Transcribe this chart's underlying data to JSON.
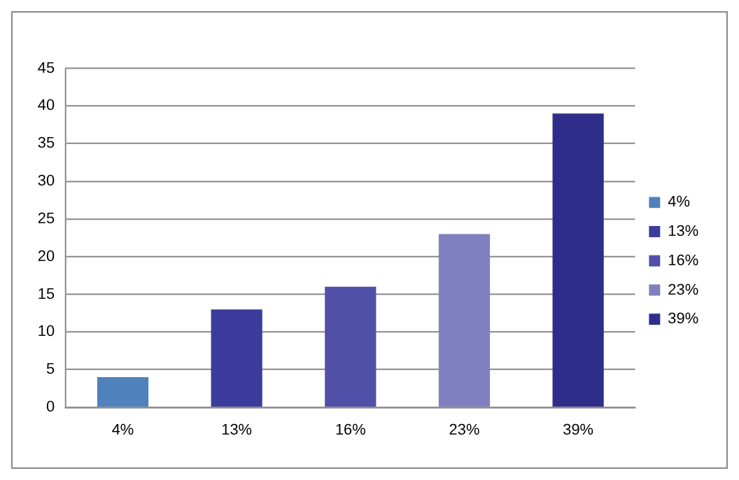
{
  "chart_data": {
    "type": "bar",
    "categories": [
      "4%",
      "13%",
      "16%",
      "23%",
      "39%"
    ],
    "series": [
      {
        "name": "4%",
        "color": "#4f81bd",
        "values": [
          4,
          null,
          null,
          null,
          null
        ]
      },
      {
        "name": "13%",
        "color": "#3c3c9c",
        "values": [
          null,
          13,
          null,
          null,
          null
        ]
      },
      {
        "name": "16%",
        "color": "#5050a8",
        "values": [
          null,
          null,
          16,
          null,
          null
        ]
      },
      {
        "name": "23%",
        "color": "#8080c0",
        "values": [
          null,
          null,
          null,
          23,
          null
        ]
      },
      {
        "name": "39%",
        "color": "#2e2e8a",
        "values": [
          null,
          null,
          null,
          null,
          39
        ]
      }
    ],
    "ylim": [
      0,
      45
    ],
    "yticks": [
      0,
      5,
      10,
      15,
      20,
      25,
      30,
      35,
      40,
      45
    ],
    "grid": "y",
    "legend": "right"
  }
}
